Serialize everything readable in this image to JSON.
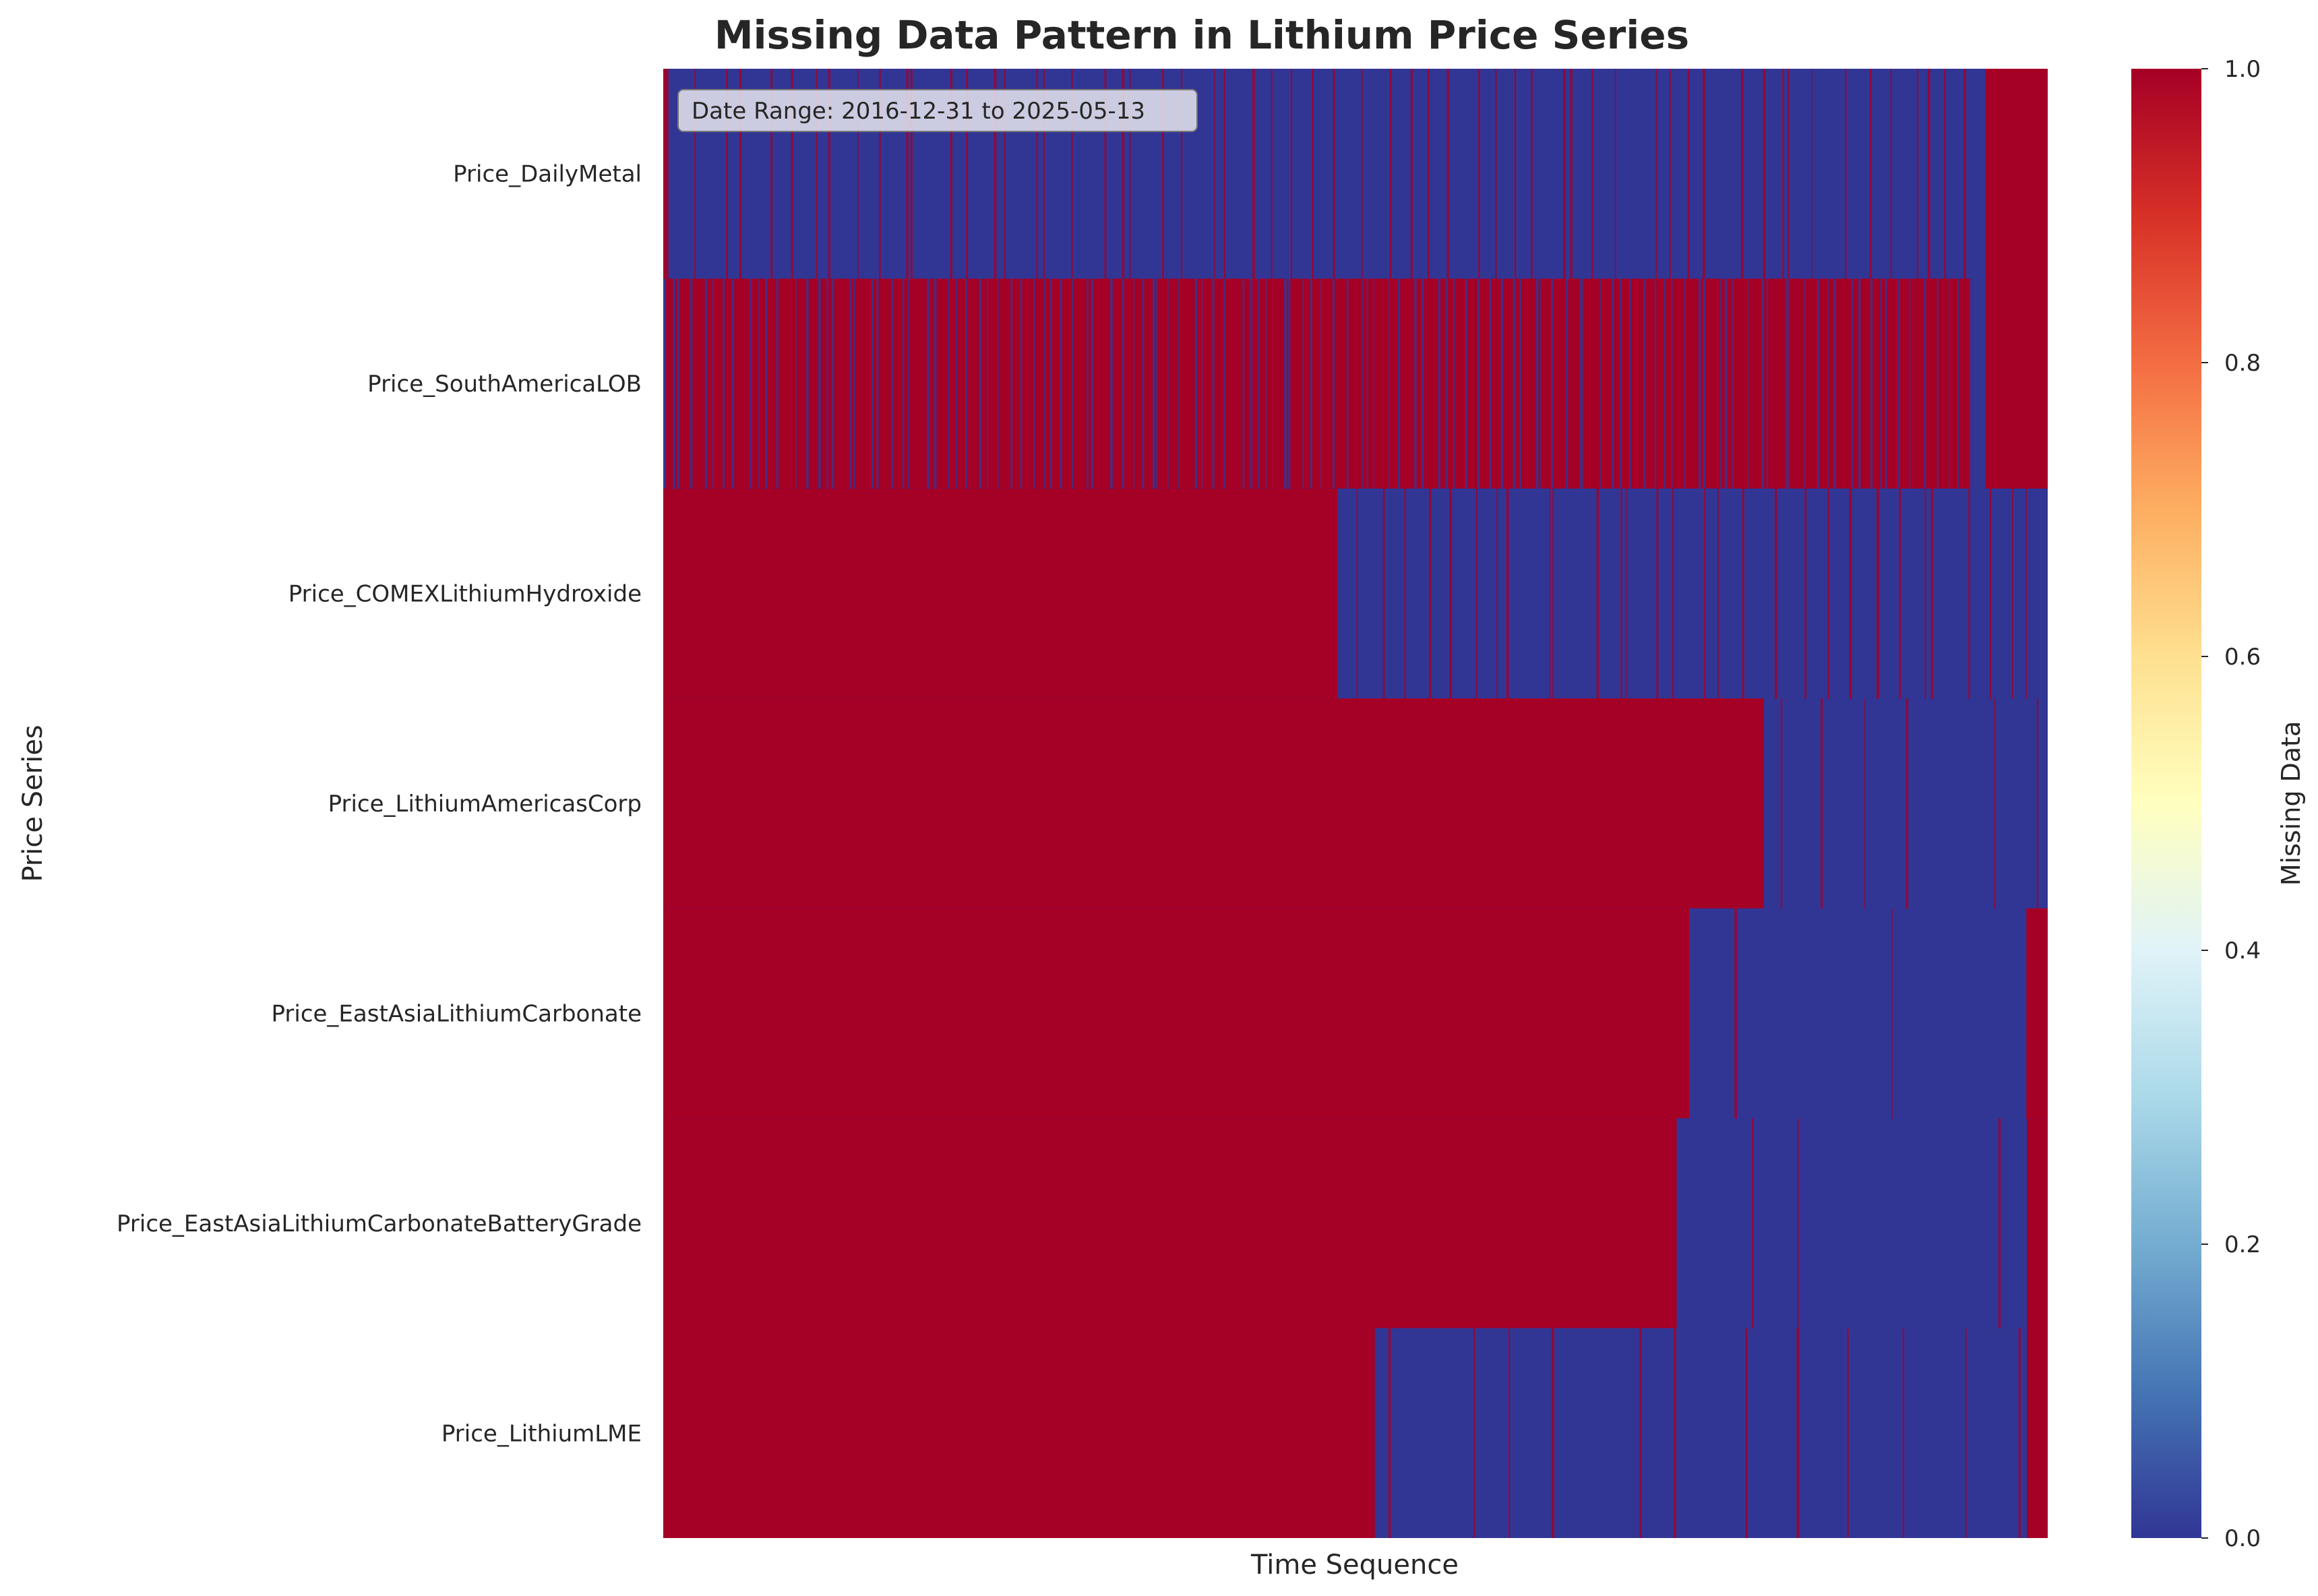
{
  "chart_data": {
    "type": "heatmap",
    "title": "Missing Data Pattern in Lithium Price Series",
    "xlabel": "Time Sequence",
    "ylabel": "Price Series",
    "annotation": "Date Range: 2016-12-31 to 2025-05-13",
    "rows": [
      "Price_DailyMetal",
      "Price_SouthAmericaLOB",
      "Price_COMEXLithiumHydroxide",
      "Price_LithiumAmericasCorp",
      "Price_EastAsiaLithiumCarbonate",
      "Price_EastAsiaLithiumCarbonateBatteryGrade",
      "Price_LithiumLME"
    ],
    "x_range": [
      0,
      1
    ],
    "value_range": [
      0,
      1
    ],
    "missing_segments": [
      [
        [
          0,
          0.002
        ],
        [
          0.955,
          1
        ]
      ],
      [
        [
          0.002,
          0.945
        ],
        [
          0.955,
          1
        ]
      ],
      [
        [
          0,
          0.487
        ]
      ],
      [
        [
          0,
          0.795
        ]
      ],
      [
        [
          0,
          0.741
        ],
        [
          0.985,
          1
        ]
      ],
      [
        [
          0,
          0.732
        ],
        [
          0.985,
          1
        ]
      ],
      [
        [
          0,
          0.514
        ],
        [
          0.985,
          1
        ]
      ]
    ],
    "gap_stripes": [
      {
        "row": 0,
        "from": 0.002,
        "to": 0.955,
        "count": 60
      },
      {
        "row": 1,
        "from": 0.002,
        "to": 0.945,
        "count": 120,
        "value": 0
      },
      {
        "row": 2,
        "from": 0.487,
        "to": 1.0,
        "count": 30
      },
      {
        "row": 3,
        "from": 0.795,
        "to": 1.0,
        "count": 6
      },
      {
        "row": 4,
        "from": 0.741,
        "to": 0.985,
        "count": 3
      },
      {
        "row": 5,
        "from": 0.732,
        "to": 0.985,
        "count": 3
      },
      {
        "row": 6,
        "from": 0.514,
        "to": 0.985,
        "count": 12
      }
    ],
    "colorbar": {
      "label": "Missing Data",
      "ticks": [
        "0.0",
        "0.2",
        "0.4",
        "0.6",
        "0.8",
        "1.0"
      ],
      "colormap": [
        "#313695",
        "#4575b4",
        "#74add1",
        "#abd9e9",
        "#e0f3f8",
        "#ffffbf",
        "#fee090",
        "#fdae61",
        "#f46d43",
        "#d73027",
        "#a50026"
      ]
    },
    "colors": {
      "missing": "#a50026",
      "present": "#313695"
    }
  }
}
